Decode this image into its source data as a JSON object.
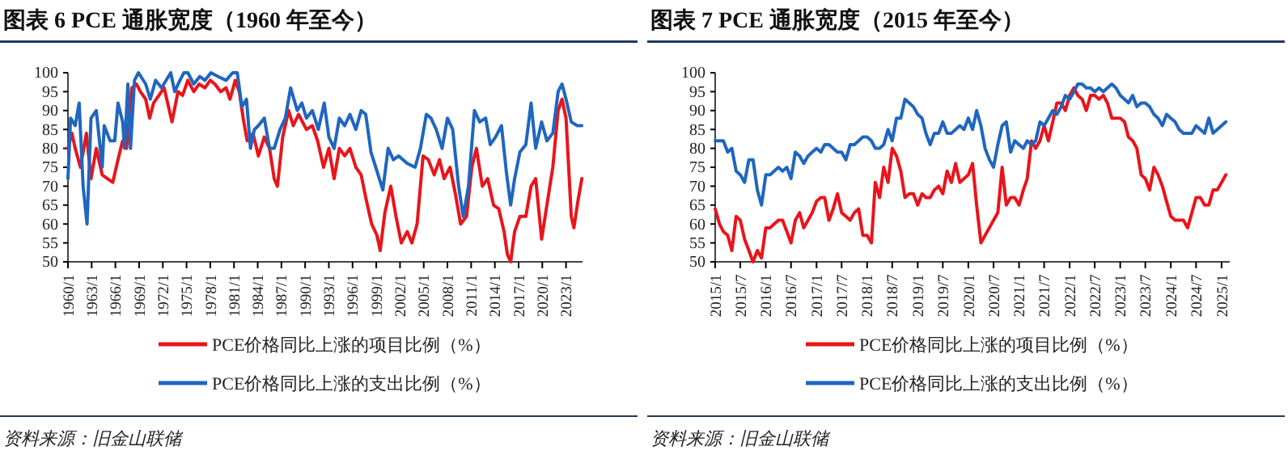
{
  "chart_data": [
    {
      "type": "line",
      "title": "图表 6   PCE 通胀宽度（1960 年至今）",
      "legend": "bottom",
      "annotations": [
        "资料来源：旧金山联储"
      ],
      "xlim": [
        "1960-01",
        "2025-02"
      ],
      "xticks": [
        {
          "value": "1960-01",
          "label": "1960/1"
        },
        {
          "value": "1963-01",
          "label": "1963/1"
        },
        {
          "value": "1966-01",
          "label": "1966/1"
        },
        {
          "value": "1969-01",
          "label": "1969/1"
        },
        {
          "value": "1972-01",
          "label": "1972/1"
        },
        {
          "value": "1975-01",
          "label": "1975/1"
        },
        {
          "value": "1978-01",
          "label": "1978/1"
        },
        {
          "value": "1981-01",
          "label": "1981/1"
        },
        {
          "value": "1984-01",
          "label": "1984/1"
        },
        {
          "value": "1987-01",
          "label": "1987/1"
        },
        {
          "value": "1990-01",
          "label": "1990/1"
        },
        {
          "value": "1993-01",
          "label": "1993/1"
        },
        {
          "value": "1996-01",
          "label": "1996/1"
        },
        {
          "value": "1999-01",
          "label": "1999/1"
        },
        {
          "value": "2002-01",
          "label": "2002/1"
        },
        {
          "value": "2005-01",
          "label": "2005/1"
        },
        {
          "value": "2008-01",
          "label": "2008/1"
        },
        {
          "value": "2011-01",
          "label": "2011/1"
        },
        {
          "value": "2014-01",
          "label": "2014/1"
        },
        {
          "value": "2017-01",
          "label": "2017/1"
        },
        {
          "value": "2020-01",
          "label": "2020/1"
        },
        {
          "value": "2023-01",
          "label": "2023/1"
        }
      ],
      "ylim": [
        50,
        100
      ],
      "yticks": [
        50,
        55,
        60,
        65,
        70,
        75,
        80,
        85,
        90,
        95,
        100
      ],
      "series": [
        {
          "name": "PCE价格同比上涨的项目比例（%）",
          "color": "#e8151b",
          "x": [
            "1960-01",
            "1960-07",
            "1960-12",
            "1961-08",
            "1962-05",
            "1962-12",
            "1963-08",
            "1964-05",
            "1965-01",
            "1965-09",
            "1966-05",
            "1966-12",
            "1967-06",
            "1968-02",
            "1968-09",
            "1969-03",
            "1969-11",
            "1970-05",
            "1970-11",
            "1971-07",
            "1972-03",
            "1973-03",
            "1973-12",
            "1974-07",
            "1975-03",
            "1975-12",
            "1976-08",
            "1977-05",
            "1978-01",
            "1978-08",
            "1979-05",
            "1980-01",
            "1980-07",
            "1981-03",
            "1981-09",
            "1982-03",
            "1982-09",
            "1983-06",
            "1984-02",
            "1984-11",
            "1985-07",
            "1986-02",
            "1986-07",
            "1987-03",
            "1987-12",
            "1988-07",
            "1989-03",
            "1990-03",
            "1990-12",
            "1991-08",
            "1992-05",
            "1993-01",
            "1993-09",
            "1994-05",
            "1995-01",
            "1995-09",
            "1996-06",
            "1997-02",
            "1997-09",
            "1998-06",
            "1999-02",
            "1999-07",
            "2000-02",
            "2000-11",
            "2001-07",
            "2002-03",
            "2002-12",
            "2003-07",
            "2004-03",
            "2004-12",
            "2005-08",
            "2006-05",
            "2007-01",
            "2007-08",
            "2008-05",
            "2009-01",
            "2009-09",
            "2010-06",
            "2011-02",
            "2011-09",
            "2012-06",
            "2013-02",
            "2013-11",
            "2014-07",
            "2015-03",
            "2015-08",
            "2016-01",
            "2016-07",
            "2017-03",
            "2017-12",
            "2018-08",
            "2019-03",
            "2019-12",
            "2020-08",
            "2021-05",
            "2022-01",
            "2022-07",
            "2023-01",
            "2023-09",
            "2024-01",
            "2024-07",
            "2025-01"
          ],
          "values": [
            80,
            84,
            80,
            75,
            84,
            72,
            80,
            73,
            72,
            71,
            77,
            82,
            80,
            96,
            97,
            95,
            93,
            88,
            92,
            94,
            96,
            87,
            95,
            94,
            98,
            95,
            97,
            96,
            98,
            97,
            95,
            96,
            93,
            98,
            95,
            88,
            82,
            84,
            78,
            83,
            80,
            72,
            70,
            83,
            90,
            86,
            89,
            85,
            86,
            82,
            75,
            80,
            72,
            80,
            78,
            80,
            75,
            73,
            67,
            60,
            57,
            53,
            63,
            70,
            62,
            55,
            58,
            55,
            60,
            78,
            77,
            73,
            77,
            72,
            75,
            68,
            60,
            62,
            75,
            80,
            70,
            72,
            65,
            64,
            58,
            52,
            50,
            58,
            62,
            62,
            70,
            72,
            56,
            65,
            75,
            90,
            93,
            88,
            62,
            59,
            66,
            72
          ]
        },
        {
          "name": "PCE价格同比上涨的支出比例（%）",
          "color": "#1f66c0",
          "x": [
            "1960-01",
            "1960-05",
            "1960-12",
            "1961-06",
            "1961-12",
            "1962-06",
            "1962-12",
            "1963-08",
            "1964-05",
            "1964-08",
            "1965-05",
            "1965-12",
            "1966-05",
            "1966-12",
            "1967-03",
            "1967-08",
            "1967-12",
            "1968-06",
            "1968-12",
            "1969-11",
            "1970-06",
            "1971-02",
            "1971-11",
            "1973-01",
            "1973-07",
            "1974-03",
            "1974-09",
            "1975-03",
            "1975-12",
            "1976-09",
            "1977-05",
            "1978-02",
            "1979-01",
            "1980-01",
            "1980-11",
            "1981-06",
            "1982-01",
            "1982-08",
            "1983-02",
            "1983-08",
            "1984-02",
            "1984-11",
            "1985-07",
            "1986-02",
            "1986-11",
            "1987-07",
            "1988-03",
            "1989-01",
            "1989-08",
            "1990-03",
            "1990-12",
            "1991-09",
            "1992-06",
            "1993-01",
            "1993-09",
            "1994-05",
            "1995-01",
            "1995-09",
            "1996-06",
            "1997-02",
            "1997-09",
            "1998-05",
            "1999-02",
            "1999-11",
            "2000-07",
            "2001-03",
            "2001-11",
            "2002-12",
            "2003-12",
            "2004-08",
            "2005-05",
            "2005-12",
            "2006-08",
            "2007-05",
            "2008-01",
            "2008-09",
            "2009-06",
            "2010-01",
            "2010-09",
            "2011-06",
            "2012-02",
            "2012-11",
            "2013-06",
            "2014-02",
            "2014-11",
            "2015-07",
            "2016-01",
            "2016-07",
            "2017-03",
            "2017-12",
            "2018-08",
            "2019-03",
            "2019-12",
            "2020-08",
            "2021-05",
            "2022-01",
            "2022-07",
            "2023-01",
            "2023-09",
            "2024-06",
            "2025-01"
          ],
          "values": [
            72,
            88,
            86,
            92,
            70,
            60,
            88,
            90,
            75,
            86,
            82,
            82,
            92,
            87,
            80,
            97,
            80,
            98,
            100,
            97,
            93,
            98,
            96,
            100,
            95,
            98,
            100,
            100,
            97,
            99,
            98,
            100,
            99,
            98,
            100,
            100,
            91,
            93,
            80,
            85,
            86,
            88,
            80,
            80,
            85,
            88,
            96,
            90,
            92,
            88,
            90,
            85,
            92,
            83,
            80,
            88,
            86,
            89,
            85,
            90,
            89,
            79,
            74,
            69,
            80,
            77,
            78,
            76,
            75,
            80,
            89,
            88,
            85,
            80,
            88,
            85,
            70,
            62,
            70,
            90,
            87,
            88,
            81,
            83,
            86,
            73,
            65,
            72,
            79,
            81,
            92,
            80,
            87,
            82,
            84,
            95,
            97,
            93,
            87,
            86,
            86
          ]
        }
      ]
    },
    {
      "type": "line",
      "title": "图表 7   PCE 通胀宽度（2015 年至今）",
      "legend": "bottom",
      "annotations": [
        "资料来源：旧金山联储"
      ],
      "xlim": [
        "2015-01",
        "2025-03"
      ],
      "xticks": [
        {
          "value": "2015-01",
          "label": "2015/1"
        },
        {
          "value": "2015-07",
          "label": "2015/7"
        },
        {
          "value": "2016-01",
          "label": "2016/1"
        },
        {
          "value": "2016-07",
          "label": "2016/7"
        },
        {
          "value": "2017-01",
          "label": "2017/1"
        },
        {
          "value": "2017-07",
          "label": "2017/7"
        },
        {
          "value": "2018-01",
          "label": "2018/1"
        },
        {
          "value": "2018-07",
          "label": "2018/7"
        },
        {
          "value": "2019-01",
          "label": "2019/1"
        },
        {
          "value": "2019-07",
          "label": "2019/7"
        },
        {
          "value": "2020-01",
          "label": "2020/1"
        },
        {
          "value": "2020-07",
          "label": "2020/7"
        },
        {
          "value": "2021-01",
          "label": "2021/1"
        },
        {
          "value": "2021-07",
          "label": "2021/7"
        },
        {
          "value": "2022-01",
          "label": "2022/1"
        },
        {
          "value": "2022-07",
          "label": "2022/7"
        },
        {
          "value": "2023-01",
          "label": "2023/1"
        },
        {
          "value": "2023-07",
          "label": "2023/7"
        },
        {
          "value": "2024-01",
          "label": "2024/1"
        },
        {
          "value": "2024-07",
          "label": "2024/7"
        },
        {
          "value": "2025-01",
          "label": "2025/1"
        }
      ],
      "ylim": [
        50,
        100
      ],
      "yticks": [
        50,
        55,
        60,
        65,
        70,
        75,
        80,
        85,
        90,
        95,
        100
      ],
      "x": [
        "2015-01",
        "2015-02",
        "2015-03",
        "2015-04",
        "2015-05",
        "2015-06",
        "2015-07",
        "2015-08",
        "2015-09",
        "2015-10",
        "2015-11",
        "2015-12",
        "2016-01",
        "2016-02",
        "2016-03",
        "2016-04",
        "2016-05",
        "2016-06",
        "2016-07",
        "2016-08",
        "2016-09",
        "2016-10",
        "2016-11",
        "2016-12",
        "2017-01",
        "2017-02",
        "2017-03",
        "2017-04",
        "2017-05",
        "2017-06",
        "2017-07",
        "2017-08",
        "2017-09",
        "2017-10",
        "2017-11",
        "2017-12",
        "2018-01",
        "2018-02",
        "2018-03",
        "2018-04",
        "2018-05",
        "2018-06",
        "2018-07",
        "2018-08",
        "2018-09",
        "2018-10",
        "2018-11",
        "2018-12",
        "2019-01",
        "2019-02",
        "2019-03",
        "2019-04",
        "2019-05",
        "2019-06",
        "2019-07",
        "2019-08",
        "2019-09",
        "2019-10",
        "2019-11",
        "2019-12",
        "2020-01",
        "2020-02",
        "2020-03",
        "2020-04",
        "2020-05",
        "2020-06",
        "2020-07",
        "2020-08",
        "2020-09",
        "2020-10",
        "2020-11",
        "2020-12",
        "2021-01",
        "2021-02",
        "2021-03",
        "2021-04",
        "2021-05",
        "2021-06",
        "2021-07",
        "2021-08",
        "2021-09",
        "2021-10",
        "2021-11",
        "2021-12",
        "2022-01",
        "2022-02",
        "2022-03",
        "2022-04",
        "2022-05",
        "2022-06",
        "2022-07",
        "2022-08",
        "2022-09",
        "2022-10",
        "2022-11",
        "2022-12",
        "2023-01",
        "2023-02",
        "2023-03",
        "2023-04",
        "2023-05",
        "2023-06",
        "2023-07",
        "2023-08",
        "2023-09",
        "2023-10",
        "2023-11",
        "2023-12",
        "2024-01",
        "2024-02",
        "2024-03",
        "2024-04",
        "2024-05",
        "2024-06",
        "2024-07",
        "2024-08",
        "2024-09",
        "2024-10",
        "2024-11",
        "2024-12",
        "2025-01",
        "2025-02"
      ],
      "series": [
        {
          "name": "PCE价格同比上涨的项目比例（%）",
          "color": "#e8151b",
          "values": [
            64,
            60,
            58,
            57,
            53,
            62,
            61,
            56,
            53,
            50,
            53,
            51,
            59,
            59,
            60,
            61,
            61,
            58,
            55,
            61,
            63,
            59,
            61,
            63,
            66,
            67,
            67,
            61,
            64,
            68,
            63,
            62,
            61,
            63,
            64,
            57,
            57,
            55,
            71,
            67,
            75,
            71,
            80,
            78,
            74,
            67,
            68,
            68,
            65,
            68,
            67,
            67,
            69,
            70,
            68,
            74,
            71,
            76,
            71,
            72,
            73,
            76,
            65,
            55,
            57,
            59,
            61,
            63,
            75,
            65,
            67,
            67,
            65,
            69,
            72,
            82,
            80,
            82,
            86,
            82,
            87,
            92,
            92,
            90,
            94,
            96,
            94,
            93,
            90,
            94,
            94,
            93,
            94,
            92,
            88,
            88,
            88,
            87,
            83,
            82,
            80,
            73,
            72,
            69,
            75,
            73,
            70,
            66,
            62,
            61,
            61,
            61,
            59,
            63,
            67,
            67,
            65,
            65,
            69,
            69,
            71,
            73
          ]
        },
        {
          "name": "PCE价格同比上涨的支出比例（%）",
          "color": "#1f66c0",
          "values": [
            82,
            82,
            82,
            79,
            80,
            74,
            73,
            71,
            77,
            77,
            69,
            65,
            73,
            73,
            74,
            75,
            74,
            75,
            72,
            79,
            78,
            76,
            78,
            79,
            80,
            79,
            81,
            81,
            80,
            79,
            79,
            77,
            81,
            81,
            82,
            83,
            83,
            82,
            80,
            80,
            81,
            85,
            82,
            88,
            88,
            93,
            92,
            91,
            89,
            88,
            84,
            81,
            84,
            84,
            87,
            84,
            84,
            85,
            86,
            85,
            88,
            85,
            90,
            86,
            80,
            77,
            75,
            81,
            86,
            87,
            79,
            82,
            81,
            80,
            82,
            81,
            82,
            87,
            86,
            88,
            90,
            89,
            91,
            94,
            93,
            95,
            97,
            97,
            96,
            96,
            95,
            96,
            95,
            96,
            97,
            96,
            94,
            93,
            92,
            94,
            91,
            92,
            92,
            91,
            89,
            88,
            86,
            89,
            88,
            87,
            85,
            84,
            84,
            84,
            86,
            85,
            84,
            88,
            84,
            85,
            86,
            87
          ]
        }
      ]
    }
  ]
}
